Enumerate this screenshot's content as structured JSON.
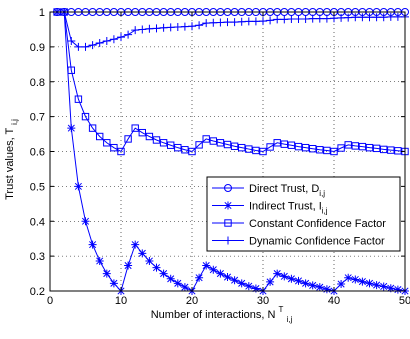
{
  "chart_data": {
    "type": "line",
    "xlabel": "Number of interactions, N",
    "xlabel_sup": "T",
    "xlabel_sub": "i,j",
    "ylabel": "Trust values, T",
    "ylabel_sub": "i,j",
    "xlim": [
      0,
      50
    ],
    "ylim": [
      0.2,
      1
    ],
    "xticks": [
      0,
      10,
      20,
      30,
      40,
      50
    ],
    "yticks": [
      0.2,
      0.3,
      0.4,
      0.5,
      0.6,
      0.7,
      0.8,
      0.9,
      1
    ],
    "grid": true,
    "legend_position": "lower-right",
    "line_color": "#0000ff",
    "series": [
      {
        "name": "Direct Trust, D",
        "name_sub": "i,j",
        "marker": "circle",
        "x": [
          1,
          2,
          3,
          4,
          5,
          6,
          7,
          8,
          9,
          10,
          11,
          12,
          13,
          14,
          15,
          16,
          17,
          18,
          19,
          20,
          21,
          22,
          23,
          24,
          25,
          26,
          27,
          28,
          29,
          30,
          31,
          32,
          33,
          34,
          35,
          36,
          37,
          38,
          39,
          40,
          41,
          42,
          43,
          44,
          45,
          46,
          47,
          48,
          49,
          50
        ],
        "values": [
          1,
          1,
          1,
          1,
          1,
          1,
          1,
          1,
          1,
          1,
          1,
          1,
          1,
          1,
          1,
          1,
          1,
          1,
          1,
          1,
          1,
          1,
          1,
          1,
          1,
          1,
          1,
          1,
          1,
          1,
          1,
          1,
          1,
          1,
          1,
          1,
          1,
          1,
          1,
          1,
          1,
          1,
          1,
          1,
          1,
          1,
          1,
          1,
          1,
          1
        ]
      },
      {
        "name": "Indirect Trust, I",
        "name_sub": "i,j",
        "marker": "star",
        "x": [
          1,
          2,
          3,
          4,
          5,
          6,
          7,
          8,
          9,
          10,
          11,
          12,
          13,
          14,
          15,
          16,
          17,
          18,
          19,
          20,
          21,
          22,
          23,
          24,
          25,
          26,
          27,
          28,
          29,
          30,
          31,
          32,
          33,
          34,
          35,
          36,
          37,
          38,
          39,
          40,
          41,
          42,
          43,
          44,
          45,
          46,
          47,
          48,
          49,
          50
        ],
        "values": [
          1,
          1,
          0.667,
          0.5,
          0.4,
          0.333,
          0.286,
          0.25,
          0.222,
          0.2,
          0.273,
          0.333,
          0.308,
          0.286,
          0.267,
          0.25,
          0.235,
          0.222,
          0.211,
          0.2,
          0.238,
          0.273,
          0.261,
          0.25,
          0.24,
          0.231,
          0.222,
          0.214,
          0.207,
          0.2,
          0.226,
          0.25,
          0.242,
          0.235,
          0.229,
          0.222,
          0.216,
          0.211,
          0.205,
          0.2,
          0.22,
          0.238,
          0.233,
          0.227,
          0.222,
          0.217,
          0.213,
          0.208,
          0.204,
          0.2
        ]
      },
      {
        "name": "Constant Confidence Factor",
        "marker": "square",
        "x": [
          1,
          2,
          3,
          4,
          5,
          6,
          7,
          8,
          9,
          10,
          11,
          12,
          13,
          14,
          15,
          16,
          17,
          18,
          19,
          20,
          21,
          22,
          23,
          24,
          25,
          26,
          27,
          28,
          29,
          30,
          31,
          32,
          33,
          34,
          35,
          36,
          37,
          38,
          39,
          40,
          41,
          42,
          43,
          44,
          45,
          46,
          47,
          48,
          49,
          50
        ],
        "values": [
          1,
          1,
          0.833,
          0.75,
          0.7,
          0.667,
          0.643,
          0.625,
          0.611,
          0.6,
          0.636,
          0.667,
          0.654,
          0.643,
          0.633,
          0.625,
          0.618,
          0.611,
          0.605,
          0.6,
          0.619,
          0.636,
          0.63,
          0.625,
          0.62,
          0.615,
          0.611,
          0.607,
          0.603,
          0.6,
          0.613,
          0.625,
          0.621,
          0.618,
          0.614,
          0.611,
          0.608,
          0.605,
          0.603,
          0.6,
          0.61,
          0.619,
          0.616,
          0.614,
          0.611,
          0.609,
          0.606,
          0.604,
          0.602,
          0.6
        ]
      },
      {
        "name": "Dynamic Confidence Factor",
        "marker": "plus",
        "x": [
          1,
          2,
          3,
          4,
          5,
          6,
          7,
          8,
          9,
          10,
          11,
          12,
          13,
          14,
          15,
          16,
          17,
          18,
          19,
          20,
          21,
          22,
          23,
          24,
          25,
          26,
          27,
          28,
          29,
          30,
          31,
          32,
          33,
          34,
          35,
          36,
          37,
          38,
          39,
          40,
          41,
          42,
          43,
          44,
          45,
          46,
          47,
          48,
          49,
          50
        ],
        "values": [
          1,
          1,
          0.917,
          0.9,
          0.9,
          0.905,
          0.911,
          0.917,
          0.922,
          0.928,
          0.935,
          0.948,
          0.95,
          0.952,
          0.953,
          0.955,
          0.956,
          0.957,
          0.958,
          0.959,
          0.962,
          0.968,
          0.969,
          0.97,
          0.971,
          0.971,
          0.972,
          0.973,
          0.973,
          0.974,
          0.976,
          0.979,
          0.979,
          0.98,
          0.98,
          0.98,
          0.981,
          0.981,
          0.981,
          0.982,
          0.983,
          0.984,
          0.985,
          0.985,
          0.985,
          0.985,
          0.985,
          0.986,
          0.986,
          0.986
        ]
      }
    ]
  }
}
